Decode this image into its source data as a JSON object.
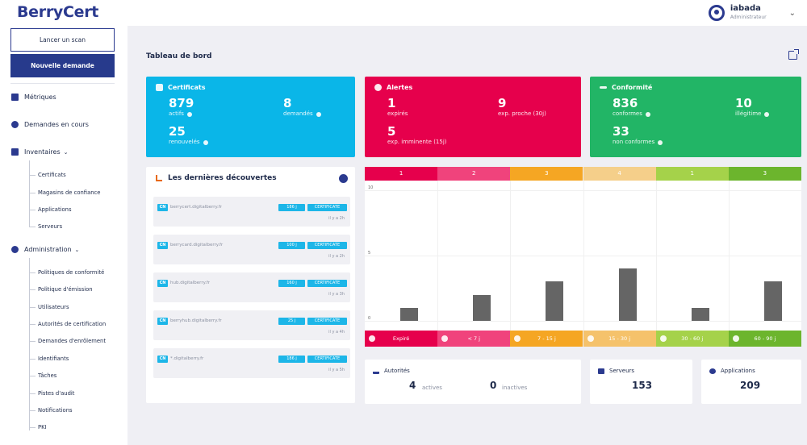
{
  "app": {
    "logo": "BerryCert"
  },
  "user": {
    "name": "iabada",
    "role": "Administrateur"
  },
  "sidebar": {
    "scan_button": "Lancer un scan",
    "new_request_button": "Nouvelle demande",
    "metrics": "Métriques",
    "requests": "Demandes en cours",
    "inventories": {
      "label": "Inventaires",
      "items": [
        "Certificats",
        "Magasins de confiance",
        "Applications",
        "Serveurs"
      ]
    },
    "administration": {
      "label": "Administration",
      "items": [
        "Politiques de conformité",
        "Politique d'émission",
        "Utilisateurs",
        "Autorités de certification",
        "Demandes d'enrôlement",
        "Identifiants",
        "Tâches",
        "Pistes d'audit",
        "Notifications",
        "PKI"
      ]
    }
  },
  "dashboard": {
    "title": "Tableau de bord",
    "certificates": {
      "title": "Certificats",
      "actifs": {
        "value": "879",
        "label": "actifs"
      },
      "demandes": {
        "value": "8",
        "label": "demandés"
      },
      "renouveles": {
        "value": "25",
        "label": "renouvelés"
      }
    },
    "alerts": {
      "title": "Alertes",
      "expires": {
        "value": "1",
        "label": "expirés"
      },
      "exp_proche": {
        "value": "9",
        "label": "exp. proche (30j)"
      },
      "exp_imminente": {
        "value": "5",
        "label": "exp. imminente (15j)"
      }
    },
    "compliance": {
      "title": "Conformité",
      "conformes": {
        "value": "836",
        "label": "conformes"
      },
      "illegitime": {
        "value": "10",
        "label": "illégitime"
      },
      "non_conformes": {
        "value": "33",
        "label": "non conformes"
      }
    },
    "discoveries": {
      "title": "Les dernières découvertes",
      "items": [
        {
          "cn": "CN",
          "host": "berrycert.digitalberry.fr",
          "days": "186 j",
          "type": "CERTIFICATE",
          "ago": "il y a 2h"
        },
        {
          "cn": "CN",
          "host": "berrycard.digitalberry.fr",
          "days": "100 j",
          "type": "CERTIFICATE",
          "ago": "il y a 2h"
        },
        {
          "cn": "CN",
          "host": "hub.digitalberry.fr",
          "days": "160 j",
          "type": "CERTIFICATE",
          "ago": "il y a 3h"
        },
        {
          "cn": "CN",
          "host": "berryhub.digitalberry.fr",
          "days": "25 j",
          "type": "CERTIFICATE",
          "ago": "il y a 4h"
        },
        {
          "cn": "CN",
          "host": "*.digitalberry.fr",
          "days": "186 j",
          "type": "CERTIFICATE",
          "ago": "il y a 5h"
        }
      ]
    },
    "stats": {
      "authorities": {
        "title": "Autorités",
        "active_value": "4",
        "active_label": "actives",
        "inactive_value": "0",
        "inactive_label": "inactives"
      },
      "servers": {
        "title": "Serveurs",
        "value": "153"
      },
      "applications": {
        "title": "Applications",
        "value": "209"
      }
    }
  },
  "chart_data": {
    "type": "bar",
    "categories": [
      "Expiré",
      "< 7 j",
      "7 - 15 j",
      "15 - 30 j",
      "30 - 60 j",
      "60 - 90 j"
    ],
    "values": [
      1,
      2,
      3,
      4,
      1,
      3
    ],
    "count_labels": [
      "1",
      "2",
      "3",
      "4",
      "1",
      "3"
    ],
    "y_ticks": [
      "0",
      "5",
      "10"
    ],
    "ylim": [
      0,
      10
    ],
    "colors": [
      "#e6004c",
      "#f0437c",
      "#f5a623",
      "#f5cf8a",
      "#a5d24a",
      "#6cb52d"
    ]
  },
  "colors": {
    "primary": "#273a8c",
    "certificates": "#0ab6e8",
    "alerts": "#e6004c",
    "compliance": "#22b566",
    "badge": "#1db6e8"
  }
}
